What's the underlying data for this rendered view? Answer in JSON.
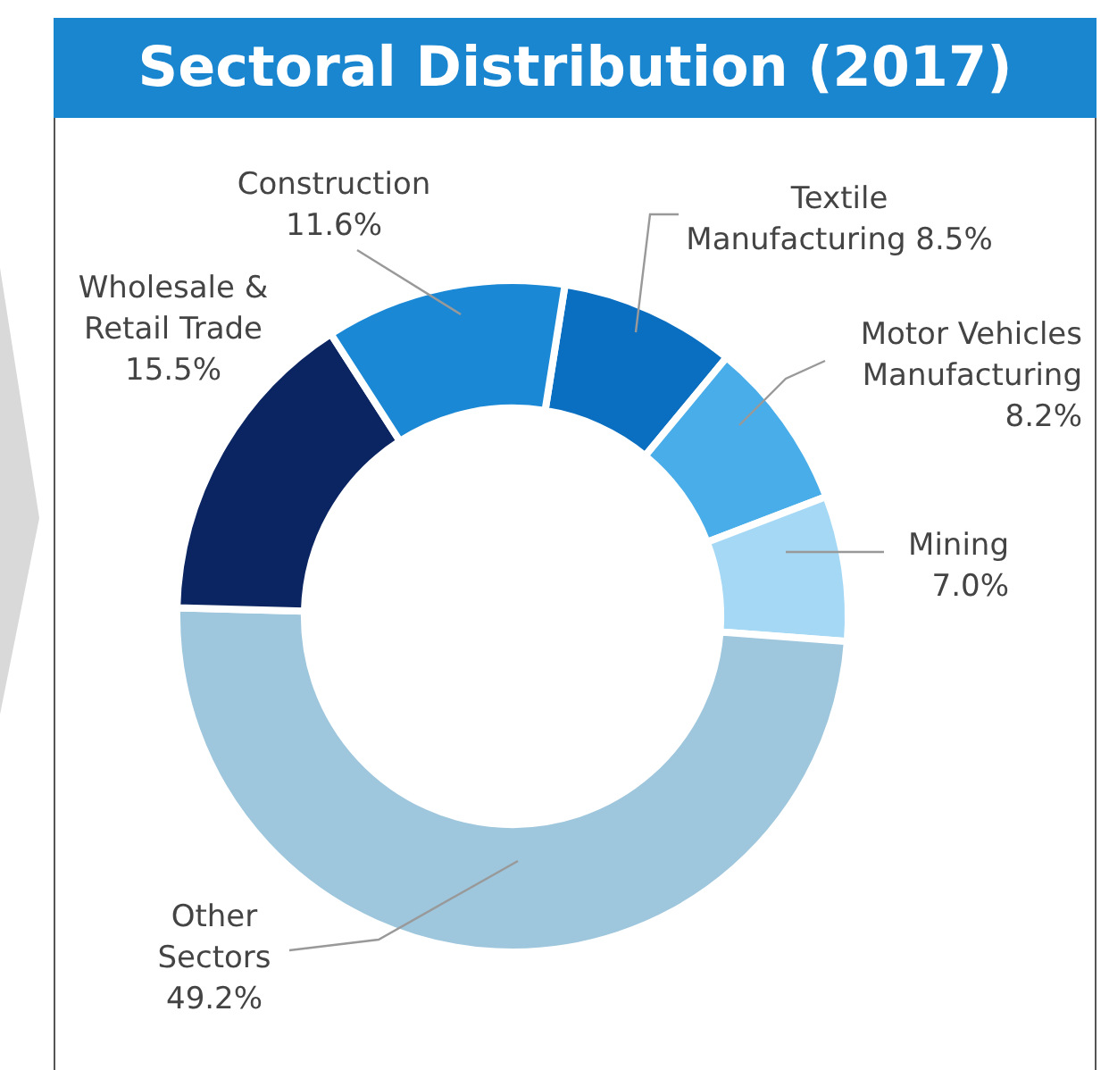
{
  "chart_data": {
    "type": "donut",
    "title": "Sectoral Distribution (2017)",
    "categories": [
      "Textile Manufacturing",
      "Motor Vehicles Manufacturing",
      "Mining",
      "Other Sectors",
      "Wholesale & Retail Trade",
      "Construction"
    ],
    "values": [
      8.5,
      8.2,
      7.0,
      49.2,
      15.5,
      11.6
    ],
    "value_labels": [
      "8.5%",
      "8.2%",
      "7.0%",
      "49.2%",
      "15.5%",
      "11.6%"
    ],
    "colors": [
      "#0b6fc1",
      "#48ade8",
      "#a5d8f5",
      "#9ec6dc",
      "#0b2562",
      "#1a88d4"
    ],
    "legend": false
  }
}
